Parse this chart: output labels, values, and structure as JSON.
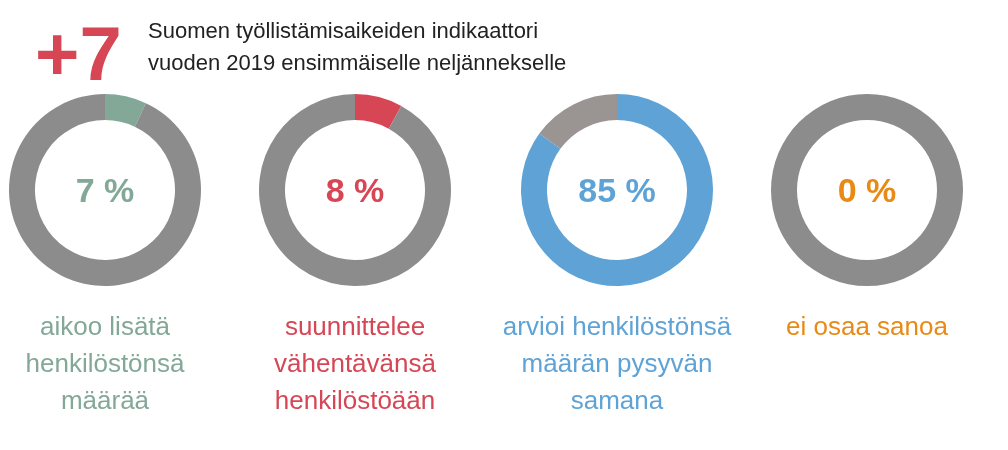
{
  "chart_data": [
    {
      "type": "donut",
      "title": "Suomen työllistämisaikeiden indikaattori\nvuoden 2019 ensimmäiselle neljännekselle",
      "annotations": [
        "+7"
      ],
      "xlabel": "aikoo lisätä\nhenkilöstönsä\nmäärää",
      "categories": [
        null,
        null
      ],
      "values": [
        7,
        93
      ],
      "colors": [
        "#83a898",
        "#8c8c8c"
      ],
      "value_labels": [
        "7 %",
        null
      ]
    },
    {
      "type": "donut",
      "xlabel": "suunnittelee\nvähentävänsä\nhenkilöstöään",
      "categories": [
        null,
        null
      ],
      "values": [
        8,
        92
      ],
      "colors": [
        "#d64655",
        "#8c8c8c"
      ],
      "value_labels": [
        "8 %",
        null
      ]
    },
    {
      "type": "donut",
      "xlabel": "arvioi henkilöstönsä\nmäärän pysyvän\nsamana",
      "categories": [
        null,
        null
      ],
      "values": [
        85,
        15
      ],
      "colors": [
        "#5fa3d6",
        "#9a9492"
      ],
      "value_labels": [
        "85 %",
        null
      ]
    },
    {
      "type": "donut",
      "xlabel": "ei osaa sanoa",
      "categories": [
        null,
        null
      ],
      "values": [
        0,
        100
      ],
      "colors": [
        "#e88a14",
        "#8c8c8c"
      ],
      "value_labels": [
        "0 %",
        null
      ]
    }
  ]
}
